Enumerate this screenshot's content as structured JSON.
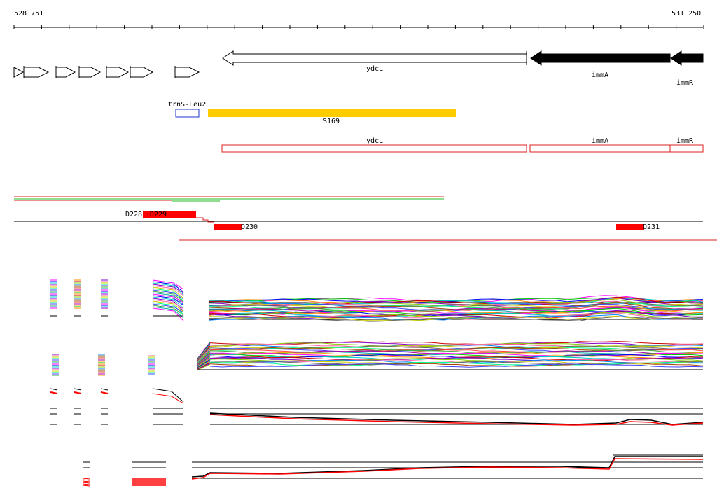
{
  "ruler": {
    "start_label": "528 751",
    "end_label": "531 250"
  },
  "genes": [
    {
      "id": "ydcL",
      "label": "ydcL",
      "strand": "-",
      "style": "outline"
    },
    {
      "id": "immA",
      "label": "immA",
      "strand": "-",
      "style": "filled"
    },
    {
      "id": "immR",
      "label": "immR",
      "strand": "-",
      "style": "filled"
    }
  ],
  "features": {
    "trna": {
      "label": "trnS-Leu2",
      "color": "#2233cc"
    },
    "segment": {
      "label": "S169",
      "color": "#ffcc00"
    }
  },
  "gene_boxes": [
    {
      "label": "ydcL"
    },
    {
      "label": "immA"
    },
    {
      "label": "immR"
    }
  ],
  "domains": [
    {
      "label": "D228"
    },
    {
      "label": "D229"
    },
    {
      "label": "D230"
    },
    {
      "label": "D231"
    }
  ],
  "colors": {
    "gene_box": "#dd2222",
    "domain": "#ff0000",
    "track_red": "#dd2222",
    "track_green": "#22bb22"
  }
}
